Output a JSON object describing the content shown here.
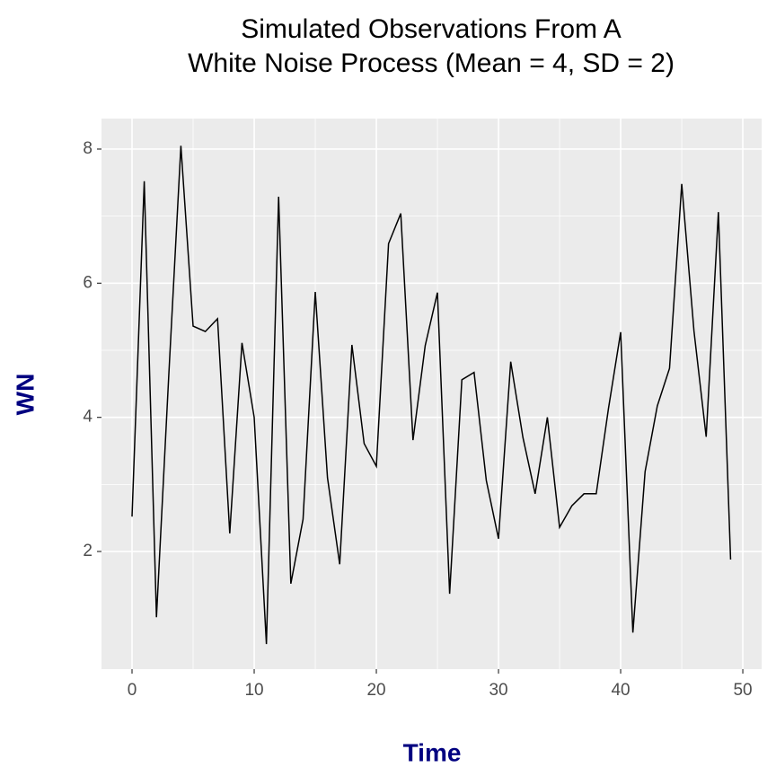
{
  "chart_data": {
    "type": "line",
    "title": [
      "Simulated Observations From A",
      "White Noise Process (Mean = 4, SD = 2)"
    ],
    "x_label": "Time",
    "y_label": "WN",
    "x": [
      0,
      1,
      2,
      3,
      4,
      5,
      6,
      7,
      8,
      9,
      10,
      11,
      12,
      13,
      14,
      15,
      16,
      17,
      18,
      19,
      20,
      21,
      22,
      23,
      24,
      25,
      26,
      27,
      28,
      29,
      30,
      31,
      32,
      33,
      34,
      35,
      36,
      37,
      38,
      39,
      40,
      41,
      42,
      43,
      44,
      45,
      46,
      47,
      48,
      49
    ],
    "series": [
      {
        "name": "WN",
        "color": "#000000",
        "values": [
          2.52,
          7.52,
          1.02,
          4.6,
          8.05,
          5.36,
          5.28,
          5.47,
          2.27,
          5.11,
          4.0,
          0.62,
          7.29,
          1.52,
          2.48,
          5.87,
          3.1,
          1.81,
          5.08,
          3.61,
          3.27,
          6.59,
          7.04,
          3.66,
          5.07,
          5.86,
          1.37,
          4.56,
          4.67,
          3.06,
          2.19,
          4.83,
          3.7,
          2.86,
          4.0,
          2.36,
          2.68,
          2.86,
          2.86,
          4.13,
          5.27,
          0.79,
          3.19,
          4.17,
          4.73,
          7.48,
          5.29,
          3.71,
          7.06,
          1.88
        ]
      }
    ],
    "xlim": [
      -2.5,
      51.54
    ],
    "ylim": [
      0.246,
      8.455
    ],
    "xticks": [
      0,
      10,
      20,
      30,
      40,
      50
    ],
    "yticks": [
      2,
      4,
      6,
      8
    ],
    "grid": true,
    "panel_color": "#ebebeb",
    "label_color": "#000080"
  }
}
